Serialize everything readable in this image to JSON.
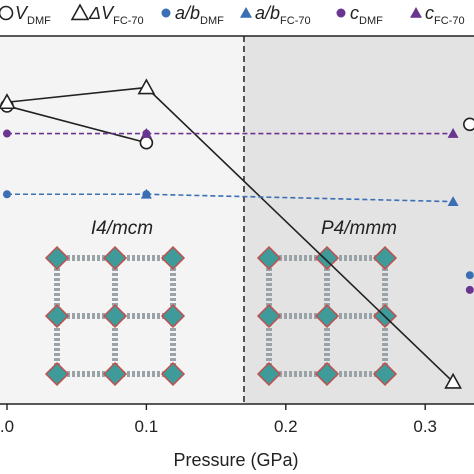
{
  "chart_data": {
    "type": "line",
    "xlabel": "Pressure (GPa)",
    "xlim": [
      -0.005,
      0.335
    ],
    "ylim": [
      0,
      1
    ],
    "x_ticks": [
      0.0,
      0.1,
      0.2,
      0.3
    ],
    "x_tick_labels": [
      ".0",
      "0.1",
      "0.2",
      "0.3"
    ],
    "transition_pressure": 0.17,
    "phases": [
      {
        "label_main": "I4/",
        "label_em": "mcm",
        "x_range": [
          -0.005,
          0.17
        ],
        "color": "#f4f4f4"
      },
      {
        "label_main": "P4/",
        "label_em": "mmm",
        "x_range": [
          0.17,
          0.335
        ],
        "color": "#e3e3e3"
      }
    ],
    "legend": [
      {
        "marker": "open-circle",
        "color": "#222222",
        "main": "V",
        "sub": "DMF"
      },
      {
        "marker": "open-triangle",
        "color": "#222222",
        "main": "ΔV",
        "sub": "FC-70"
      },
      {
        "marker": "filled-circle",
        "color": "#3a6fb5",
        "main": "a/b",
        "sub": "DMF"
      },
      {
        "marker": "filled-triangle",
        "color": "#3a6fb5",
        "main": "a/b",
        "sub": "FC-70"
      },
      {
        "marker": "filled-circle",
        "color": "#6a3591",
        "main": "c",
        "sub": "DMF"
      },
      {
        "marker": "filled-triangle",
        "color": "#6a3591",
        "main": "c",
        "sub": "FC-70"
      }
    ],
    "series": [
      {
        "name": "V_DMF",
        "marker": "open-circle",
        "color": "#222222",
        "line": "solid",
        "x": [
          0.0,
          0.1
        ],
        "y": [
          0.81,
          0.71
        ]
      },
      {
        "name": "V_FC-70",
        "marker": "open-triangle",
        "color": "#222222",
        "line": "solid",
        "x": [
          0.0,
          0.1,
          0.32
        ],
        "y": [
          0.82,
          0.86,
          0.06
        ]
      },
      {
        "name": "a/b_DMF",
        "marker": "filled-circle",
        "color": "#3a6fb5",
        "line": "dashed",
        "x": [
          0.0,
          0.1
        ],
        "y": [
          0.57,
          0.57
        ]
      },
      {
        "name": "a/b_FC-70",
        "marker": "filled-triangle",
        "color": "#3a6fb5",
        "line": "dashed",
        "x": [
          0.1,
          0.32
        ],
        "y": [
          0.57,
          0.55
        ]
      },
      {
        "name": "c_DMF",
        "marker": "filled-circle",
        "color": "#6a3591",
        "line": "dashed",
        "x": [
          0.0,
          0.1
        ],
        "y": [
          0.735,
          0.735
        ]
      },
      {
        "name": "c_FC-70",
        "marker": "filled-triangle",
        "color": "#6a3591",
        "line": "dashed",
        "x": [
          0.1,
          0.32
        ],
        "y": [
          0.735,
          0.735
        ]
      },
      {
        "name": "V_DMF_right",
        "marker": "open-circle",
        "color": "#222222",
        "line": "none",
        "x": [
          0.332
        ],
        "y": [
          0.76
        ]
      },
      {
        "name": "a/b_right",
        "marker": "filled-circle",
        "color": "#3a6fb5",
        "line": "none",
        "x": [
          0.332
        ],
        "y": [
          0.35
        ]
      },
      {
        "name": "c_right",
        "marker": "filled-circle",
        "color": "#6a3591",
        "line": "none",
        "x": [
          0.332
        ],
        "y": [
          0.31
        ]
      }
    ]
  }
}
